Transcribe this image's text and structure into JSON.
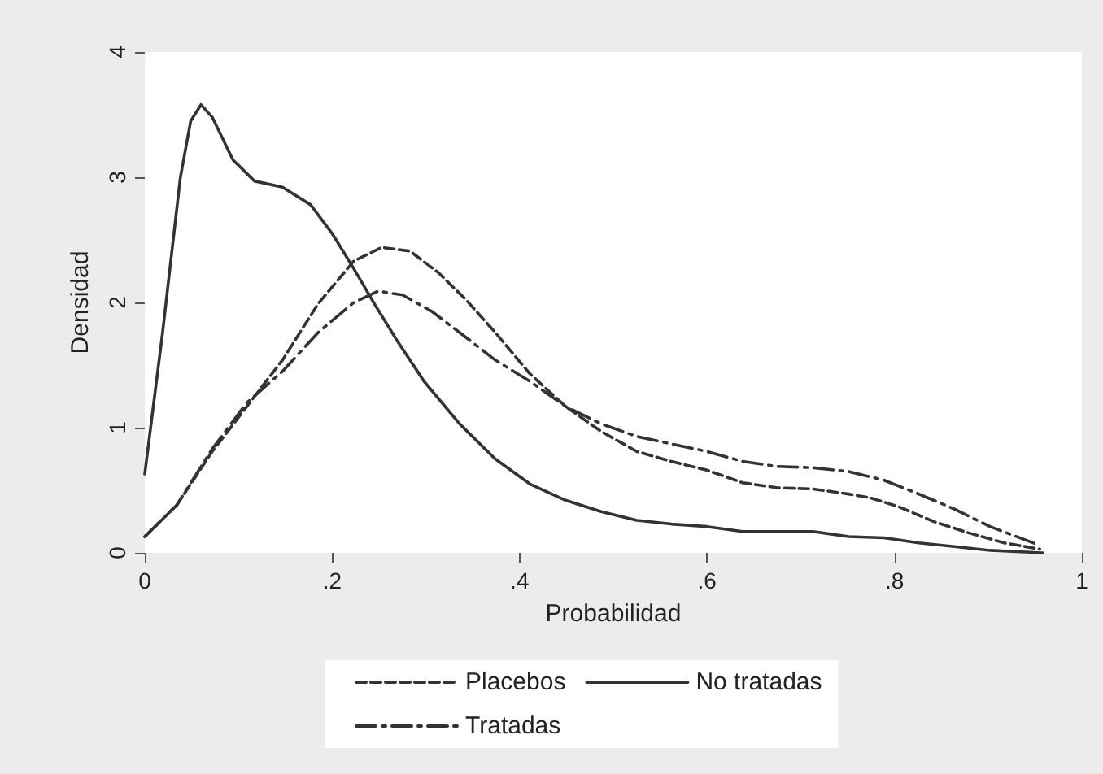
{
  "chart_data": {
    "type": "line",
    "xlabel": "Probabilidad",
    "ylabel": "Densidad",
    "xlim": [
      0,
      1
    ],
    "ylim": [
      0,
      4
    ],
    "xticks": [
      0,
      {
        "value": 0.2,
        "label": ".2"
      },
      {
        "value": 0.4,
        "label": ".4"
      },
      {
        "value": 0.6,
        "label": ".6"
      },
      {
        "value": 0.8,
        "label": ".8"
      },
      1
    ],
    "yticks": [
      0,
      1,
      2,
      3,
      4
    ],
    "grid": false,
    "legend": "bottom",
    "marker": "none",
    "series": [
      {
        "name": "Placebos",
        "color": "#333333",
        "line_style": "dashed",
        "x": [
          0,
          0.034,
          0.072,
          0.109,
          0.147,
          0.185,
          0.223,
          0.253,
          0.283,
          0.313,
          0.343,
          0.374,
          0.411,
          0.449,
          0.487,
          0.525,
          0.562,
          0.6,
          0.638,
          0.675,
          0.713,
          0.751,
          0.774,
          0.804,
          0.842,
          0.879,
          0.917,
          0.955
        ],
        "values": [
          0.13,
          0.38,
          0.81,
          1.17,
          1.54,
          1.99,
          2.33,
          2.44,
          2.41,
          2.24,
          2.02,
          1.76,
          1.43,
          1.17,
          0.97,
          0.81,
          0.73,
          0.66,
          0.56,
          0.52,
          0.51,
          0.47,
          0.44,
          0.37,
          0.25,
          0.16,
          0.08,
          0.03
        ]
      },
      {
        "name": "No tratadas",
        "color": "#333333",
        "line_style": "solid",
        "x": [
          0,
          0.019,
          0.038,
          0.049,
          0.06,
          0.072,
          0.094,
          0.117,
          0.147,
          0.177,
          0.2,
          0.223,
          0.245,
          0.268,
          0.298,
          0.336,
          0.374,
          0.411,
          0.449,
          0.487,
          0.525,
          0.562,
          0.6,
          0.638,
          0.675,
          0.713,
          0.751,
          0.789,
          0.826,
          0.864,
          0.902,
          0.958
        ],
        "values": [
          0.63,
          1.76,
          3.0,
          3.45,
          3.58,
          3.48,
          3.14,
          2.97,
          2.92,
          2.78,
          2.55,
          2.27,
          1.99,
          1.71,
          1.37,
          1.03,
          0.75,
          0.55,
          0.42,
          0.33,
          0.26,
          0.23,
          0.21,
          0.17,
          0.17,
          0.17,
          0.13,
          0.12,
          0.08,
          0.05,
          0.02,
          0.0
        ]
      },
      {
        "name": "Tratadas",
        "color": "#333333",
        "line_style": "dashdot",
        "x": [
          0,
          0.034,
          0.072,
          0.109,
          0.147,
          0.185,
          0.223,
          0.249,
          0.275,
          0.306,
          0.336,
          0.374,
          0.411,
          0.449,
          0.487,
          0.525,
          0.562,
          0.6,
          0.638,
          0.675,
          0.713,
          0.751,
          0.789,
          0.826,
          0.864,
          0.902,
          0.955
        ],
        "values": [
          0.13,
          0.38,
          0.83,
          1.2,
          1.45,
          1.76,
          2.0,
          2.09,
          2.06,
          1.93,
          1.76,
          1.54,
          1.37,
          1.17,
          1.03,
          0.93,
          0.87,
          0.81,
          0.73,
          0.69,
          0.68,
          0.65,
          0.58,
          0.47,
          0.35,
          0.21,
          0.06
        ]
      }
    ]
  }
}
